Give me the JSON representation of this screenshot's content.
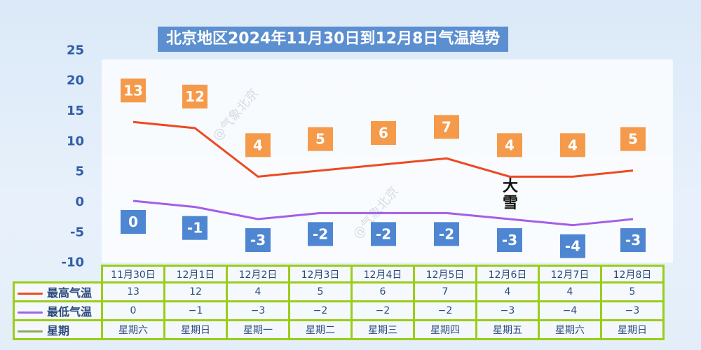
{
  "title": "北京地区2024年11月30日到12月8日气温趋势",
  "annotation": "大雪",
  "watermark": "@气象北京",
  "colors": {
    "high": "#ec4a22",
    "low": "#a45ee8",
    "week": "#8caa5a",
    "high_box": "#f59a4a",
    "low_box": "#4f86d2",
    "grid": "#9acd1a"
  },
  "chart_data": {
    "type": "line",
    "title": "北京地区2024年11月30日到12月8日气温趋势",
    "categories": [
      "11月30日",
      "12月1日",
      "12月2日",
      "12月3日",
      "12月4日",
      "12月5日",
      "12月6日",
      "12月7日",
      "12月8日"
    ],
    "yticks": [
      "25",
      "20",
      "15",
      "10",
      "5",
      "0",
      "-5",
      "-10"
    ],
    "ylim": [
      -10,
      25
    ],
    "series": [
      {
        "name": "最高气温",
        "values": [
          13,
          12,
          4,
          5,
          6,
          7,
          4,
          4,
          5
        ]
      },
      {
        "name": "最低气温",
        "values": [
          0,
          -1,
          -3,
          -2,
          -2,
          -2,
          -3,
          -4,
          -3
        ]
      }
    ],
    "table_rows": [
      {
        "name": "最高气温",
        "cells": [
          "13",
          "12",
          "4",
          "5",
          "6",
          "7",
          "4",
          "4",
          "5"
        ]
      },
      {
        "name": "最低气温",
        "cells": [
          "0",
          "−1",
          "−3",
          "−2",
          "−2",
          "−2",
          "−3",
          "−4",
          "−3"
        ]
      },
      {
        "name": "星期",
        "cells": [
          "星期六",
          "星期日",
          "星期一",
          "星期二",
          "星期三",
          "星期四",
          "星期五",
          "星期六",
          "星期日"
        ]
      }
    ]
  }
}
